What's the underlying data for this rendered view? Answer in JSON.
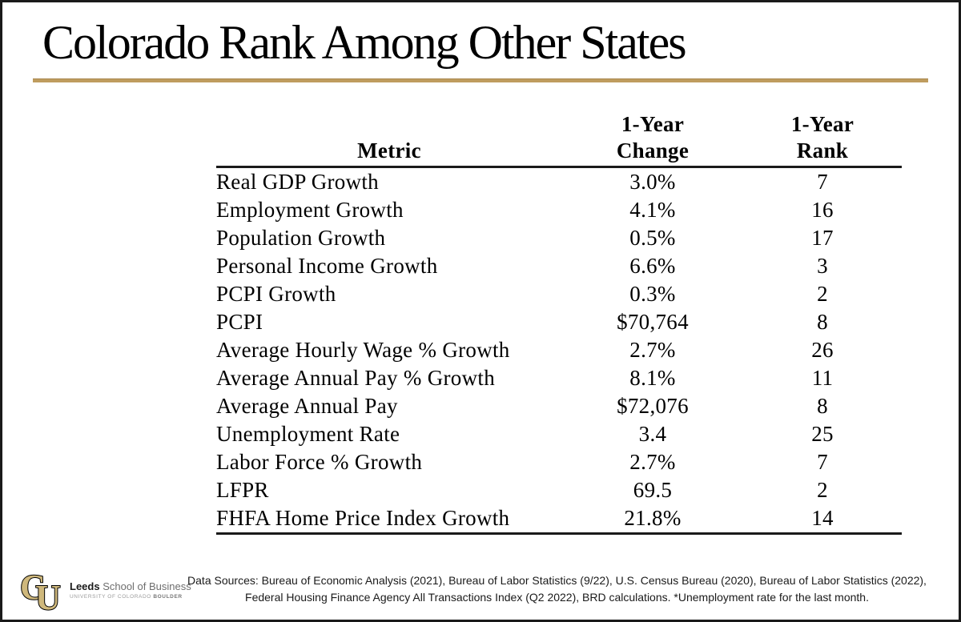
{
  "slide": {
    "title": "Colorado Rank Among Other States"
  },
  "table": {
    "header": {
      "metric": "Metric",
      "change_line1": "1-Year",
      "change_line2": "Change",
      "rank_line1": "1-Year",
      "rank_line2": "Rank"
    },
    "rows": [
      {
        "metric": "Real GDP Growth",
        "change": "3.0%",
        "rank": "7"
      },
      {
        "metric": "Employment Growth",
        "change": "4.1%",
        "rank": "16"
      },
      {
        "metric": "Population Growth",
        "change": "0.5%",
        "rank": "17"
      },
      {
        "metric": "Personal Income Growth",
        "change": "6.6%",
        "rank": "3"
      },
      {
        "metric": "PCPI Growth",
        "change": "0.3%",
        "rank": "2"
      },
      {
        "metric": "PCPI",
        "change": "$70,764",
        "rank": "8"
      },
      {
        "metric": "Average Hourly Wage % Growth",
        "change": "2.7%",
        "rank": "26"
      },
      {
        "metric": "Average Annual Pay % Growth",
        "change": "8.1%",
        "rank": "11"
      },
      {
        "metric": "Average Annual Pay",
        "change": "$72,076",
        "rank": "8"
      },
      {
        "metric": "Unemployment Rate",
        "change": "3.4",
        "rank": "25"
      },
      {
        "metric": "Labor Force % Growth",
        "change": "2.7%",
        "rank": "7"
      },
      {
        "metric": "LFPR",
        "change": "69.5",
        "rank": "2"
      },
      {
        "metric": "FHFA Home Price Index Growth",
        "change": "21.8%",
        "rank": "14"
      }
    ]
  },
  "footer": {
    "source_line1": "Data Sources: Bureau of Economic Analysis (2021), Bureau of Labor Statistics (9/22), U.S. Census Bureau (2020), Bureau of Labor Statistics (2022),",
    "source_line2": "Federal Housing Finance Agency All Transactions Index (Q2 2022), BRD calculations. *Unemployment rate for the last month.",
    "logo": {
      "monogram_c": "C",
      "monogram_u": "U",
      "name_bold": "Leeds",
      "name_rest": " School of Business",
      "subtitle_prefix": "UNIVERSITY OF COLORADO ",
      "subtitle_bold": "BOULDER"
    }
  },
  "colors": {
    "accent_gold": "#BF9C5E",
    "logo_gold": "#CFB87C",
    "frame_black": "#1A1A1A"
  },
  "chart_data": {
    "type": "table",
    "title": "Colorado Rank Among Other States",
    "columns": [
      "Metric",
      "1-Year Change",
      "1-Year Rank"
    ],
    "rows": [
      [
        "Real GDP Growth",
        "3.0%",
        7
      ],
      [
        "Employment Growth",
        "4.1%",
        16
      ],
      [
        "Population Growth",
        "0.5%",
        17
      ],
      [
        "Personal Income Growth",
        "6.6%",
        3
      ],
      [
        "PCPI Growth",
        "0.3%",
        2
      ],
      [
        "PCPI",
        "$70,764",
        8
      ],
      [
        "Average Hourly Wage % Growth",
        "2.7%",
        26
      ],
      [
        "Average Annual Pay % Growth",
        "8.1%",
        11
      ],
      [
        "Average Annual Pay",
        "$72,076",
        8
      ],
      [
        "Unemployment Rate",
        "3.4",
        25
      ],
      [
        "Labor Force % Growth",
        "2.7%",
        7
      ],
      [
        "LFPR",
        "69.5",
        2
      ],
      [
        "FHFA Home Price Index Growth",
        "21.8%",
        14
      ]
    ]
  }
}
